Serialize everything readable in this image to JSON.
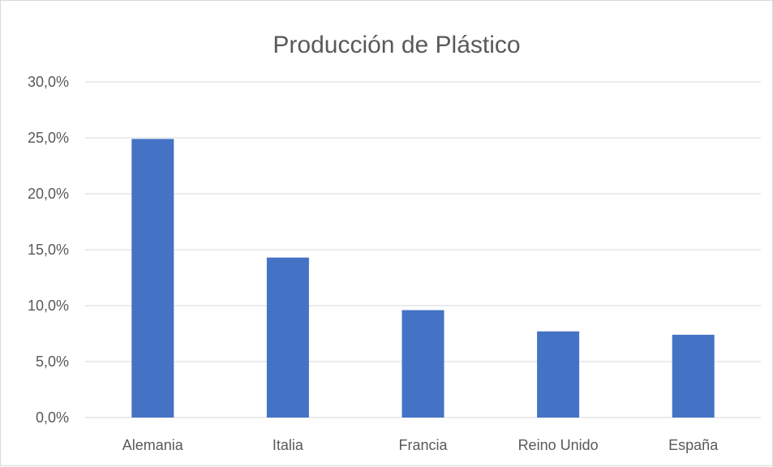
{
  "chart_data": {
    "type": "bar",
    "title": "Producción de Plástico",
    "xlabel": "",
    "ylabel": "",
    "categories": [
      "Alemania",
      "Italia",
      "Francia",
      "Reino Unido",
      "España"
    ],
    "values": [
      24.9,
      14.3,
      9.6,
      7.7,
      7.4
    ],
    "unit": "%",
    "ylim": [
      0,
      30
    ],
    "y_ticks": [
      0,
      5,
      10,
      15,
      20,
      25,
      30
    ],
    "y_tick_labels": [
      "0,0%",
      "5,0%",
      "10,0%",
      "15,0%",
      "20,0%",
      "25,0%",
      "30,0%"
    ],
    "grid": true,
    "legend": "none",
    "bar_color": "#4472c4"
  }
}
